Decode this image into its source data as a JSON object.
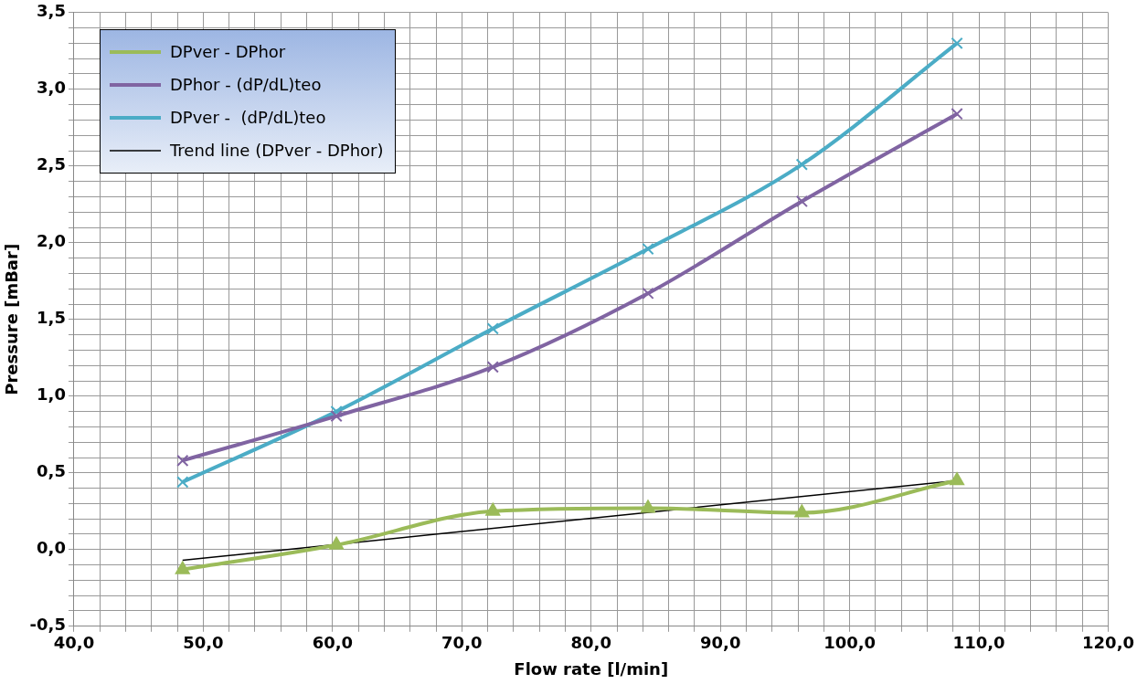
{
  "chart_data": {
    "type": "line",
    "xlabel": "Flow rate [l/min]",
    "ylabel": "Pressure [mBar]",
    "xlim": [
      40,
      120
    ],
    "xticks": [
      {
        "value": 40,
        "label": "40,0"
      },
      {
        "value": 42,
        "label": null
      },
      {
        "value": 44,
        "label": null
      },
      {
        "value": 46,
        "label": null
      },
      {
        "value": 48,
        "label": null
      },
      {
        "value": 50,
        "label": "50,0"
      },
      {
        "value": 52,
        "label": null
      },
      {
        "value": 54,
        "label": null
      },
      {
        "value": 56,
        "label": null
      },
      {
        "value": 58,
        "label": null
      },
      {
        "value": 60,
        "label": "60,0"
      },
      {
        "value": 62,
        "label": null
      },
      {
        "value": 64,
        "label": null
      },
      {
        "value": 66,
        "label": null
      },
      {
        "value": 68,
        "label": null
      },
      {
        "value": 70,
        "label": "70,0"
      },
      {
        "value": 72,
        "label": null
      },
      {
        "value": 74,
        "label": null
      },
      {
        "value": 76,
        "label": null
      },
      {
        "value": 78,
        "label": null
      },
      {
        "value": 80,
        "label": "80,0"
      },
      {
        "value": 82,
        "label": null
      },
      {
        "value": 84,
        "label": null
      },
      {
        "value": 86,
        "label": null
      },
      {
        "value": 88,
        "label": null
      },
      {
        "value": 90,
        "label": "90,0"
      },
      {
        "value": 92,
        "label": null
      },
      {
        "value": 94,
        "label": null
      },
      {
        "value": 96,
        "label": null
      },
      {
        "value": 98,
        "label": null
      },
      {
        "value": 100,
        "label": "100,0"
      },
      {
        "value": 102,
        "label": null
      },
      {
        "value": 104,
        "label": null
      },
      {
        "value": 106,
        "label": null
      },
      {
        "value": 108,
        "label": null
      },
      {
        "value": 110,
        "label": "110,0"
      },
      {
        "value": 112,
        "label": null
      },
      {
        "value": 114,
        "label": null
      },
      {
        "value": 116,
        "label": null
      },
      {
        "value": 118,
        "label": null
      },
      {
        "value": 120,
        "label": "120,0"
      }
    ],
    "ylim": [
      -0.5,
      3.5
    ],
    "yticks": [
      {
        "value": -0.5,
        "label": "-0,5"
      },
      {
        "value": -0.4,
        "label": null
      },
      {
        "value": -0.3,
        "label": null
      },
      {
        "value": -0.2,
        "label": null
      },
      {
        "value": -0.1,
        "label": null
      },
      {
        "value": 0,
        "label": "0,0"
      },
      {
        "value": 0.1,
        "label": null
      },
      {
        "value": 0.2,
        "label": null
      },
      {
        "value": 0.3,
        "label": null
      },
      {
        "value": 0.4,
        "label": null
      },
      {
        "value": 0.5,
        "label": "0,5"
      },
      {
        "value": 0.6,
        "label": null
      },
      {
        "value": 0.7,
        "label": null
      },
      {
        "value": 0.8,
        "label": null
      },
      {
        "value": 0.9,
        "label": null
      },
      {
        "value": 1,
        "label": "1,0"
      },
      {
        "value": 1.1,
        "label": null
      },
      {
        "value": 1.2,
        "label": null
      },
      {
        "value": 1.3,
        "label": null
      },
      {
        "value": 1.4,
        "label": null
      },
      {
        "value": 1.5,
        "label": "1,5"
      },
      {
        "value": 1.6,
        "label": null
      },
      {
        "value": 1.7,
        "label": null
      },
      {
        "value": 1.8,
        "label": null
      },
      {
        "value": 1.9,
        "label": null
      },
      {
        "value": 2,
        "label": "2,0"
      },
      {
        "value": 2.1,
        "label": null
      },
      {
        "value": 2.2,
        "label": null
      },
      {
        "value": 2.3,
        "label": null
      },
      {
        "value": 2.4,
        "label": null
      },
      {
        "value": 2.5,
        "label": "2,5"
      },
      {
        "value": 2.6,
        "label": null
      },
      {
        "value": 2.7,
        "label": null
      },
      {
        "value": 2.8,
        "label": null
      },
      {
        "value": 2.9,
        "label": null
      },
      {
        "value": 3,
        "label": "3,0"
      },
      {
        "value": 3.1,
        "label": null
      },
      {
        "value": 3.2,
        "label": null
      },
      {
        "value": 3.3,
        "label": null
      },
      {
        "value": 3.4,
        "label": null
      },
      {
        "value": 3.5,
        "label": "3,5"
      }
    ],
    "grid": true,
    "legend": "top left",
    "x": [
      48.4,
      60.3,
      72.4,
      84.4,
      96.3,
      108.3
    ],
    "series": [
      {
        "name": "DPver - DPhor",
        "color": "#9bbb59",
        "marker": "triangle",
        "values": [
          -0.13,
          0.03,
          0.25,
          0.27,
          0.24,
          0.45
        ]
      },
      {
        "name": "DPhor - (dP/dL)teo",
        "color": "#8064a2",
        "marker": "cross",
        "values": [
          0.58,
          0.87,
          1.19,
          1.67,
          2.27,
          2.84
        ]
      },
      {
        "name": "DPver -  (dP/dL)teo",
        "color": "#4bacc6",
        "marker": "cross",
        "values": [
          0.44,
          0.9,
          1.44,
          1.96,
          2.51,
          3.3
        ]
      },
      {
        "name": "Trend line (DPver - DPhor)",
        "color": "#000000",
        "marker": "none",
        "x": [
          48.4,
          108.3
        ],
        "values": [
          -0.07,
          0.45
        ]
      }
    ]
  }
}
